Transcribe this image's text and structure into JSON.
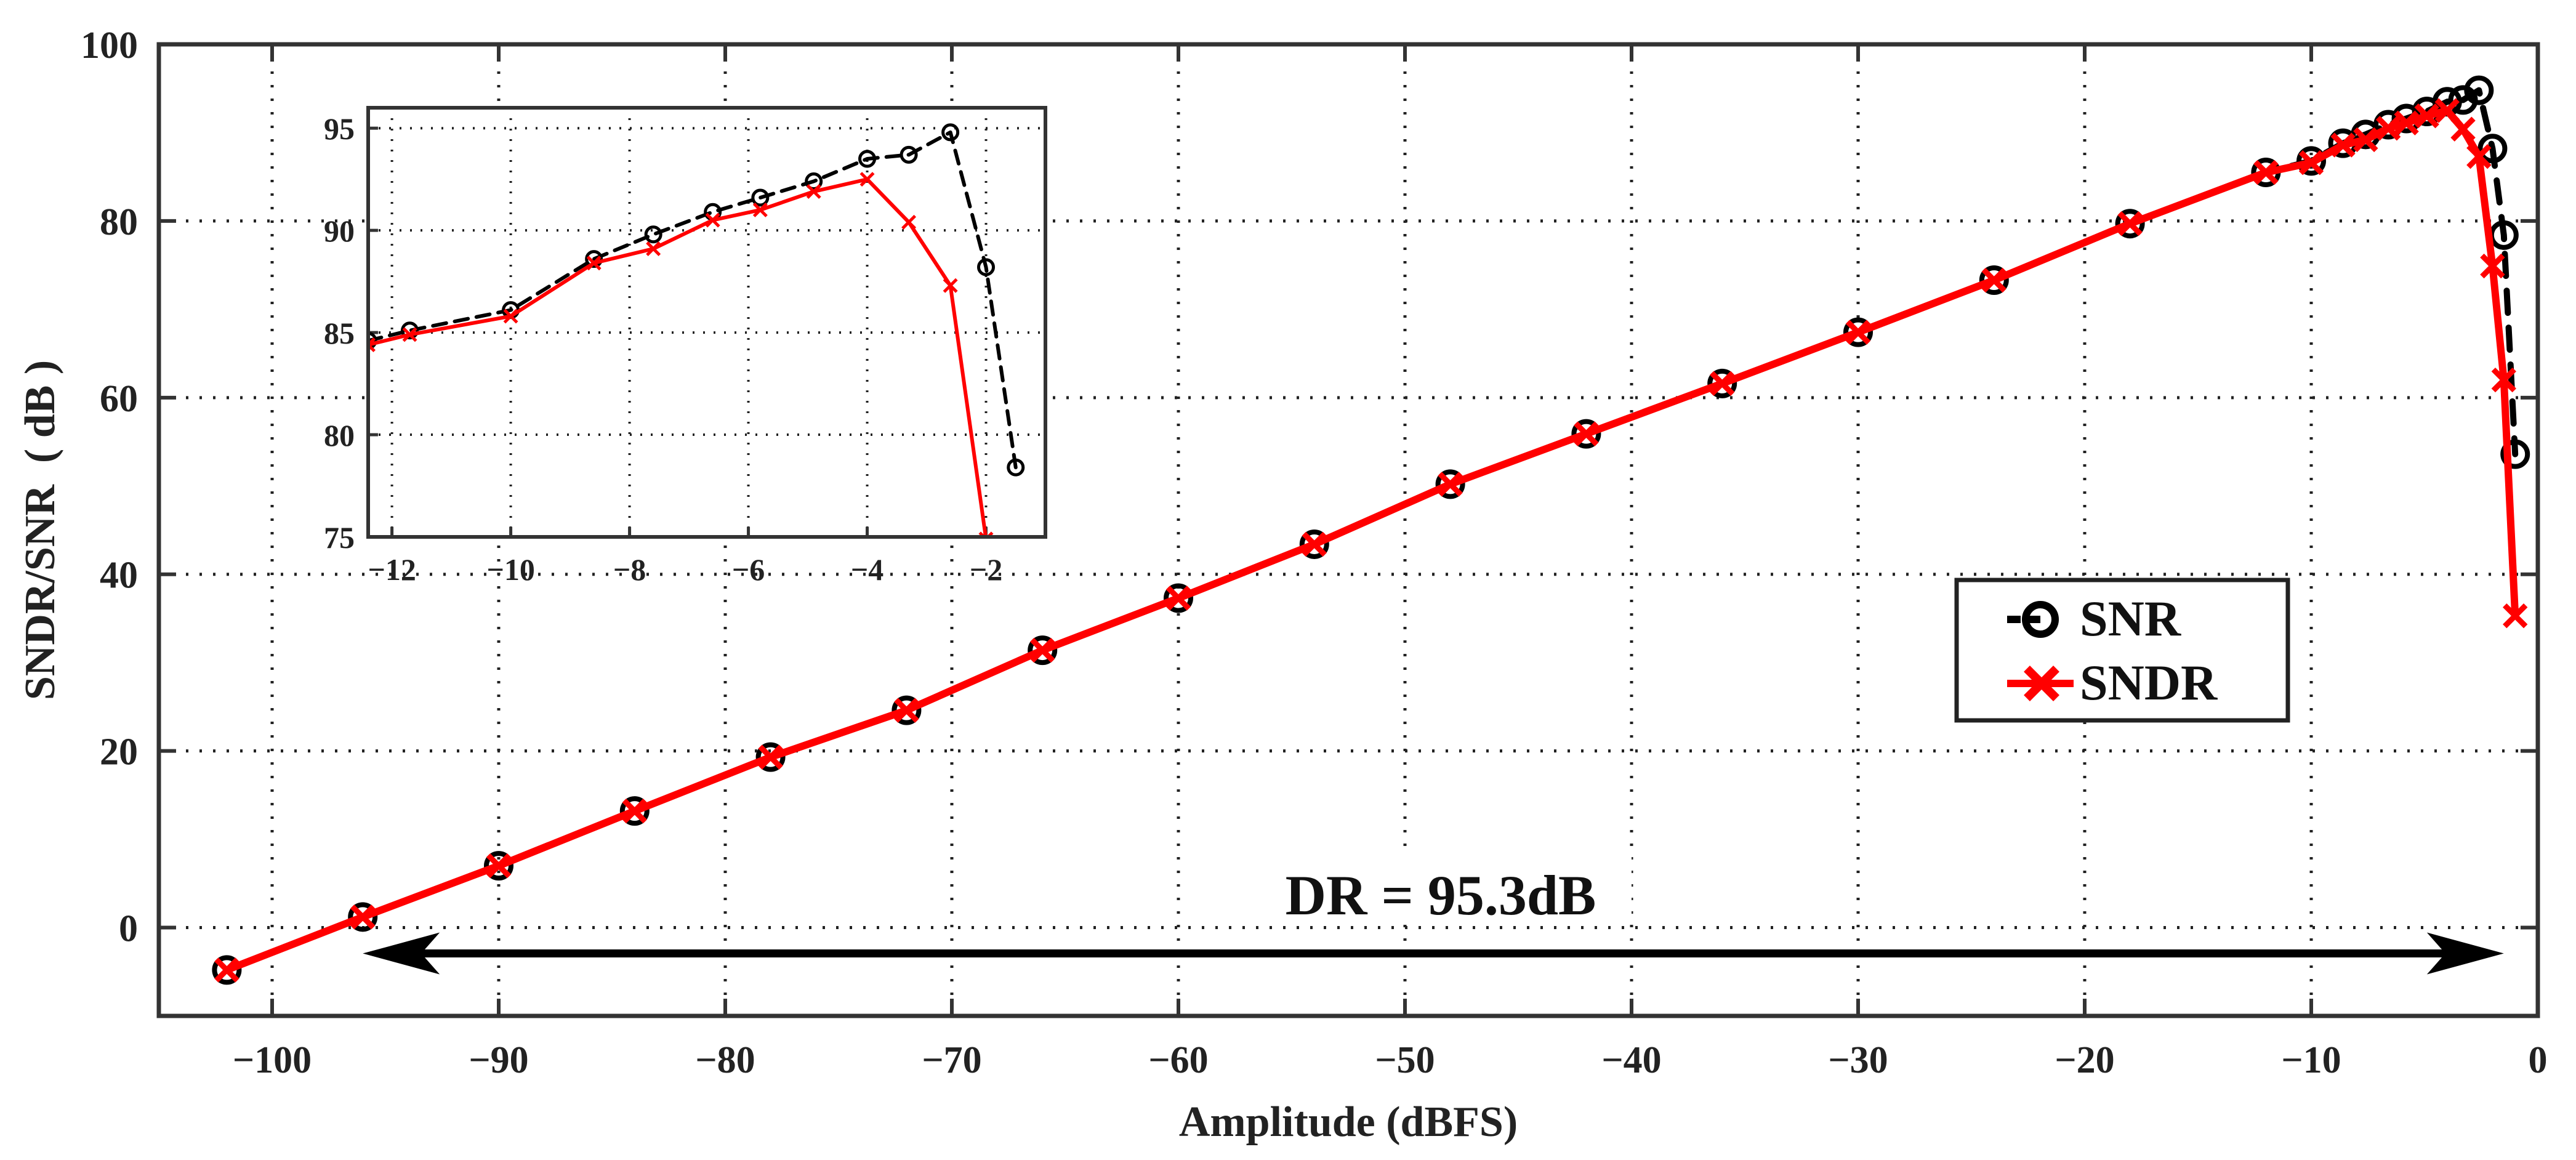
{
  "chart_data": [
    {
      "type": "line",
      "title": "",
      "xlabel": "Amplitude  (dBFS)",
      "ylabel": "SNDR/SNR  ( dB )",
      "xlim": [
        -105,
        0
      ],
      "ylim": [
        -10,
        100
      ],
      "x_ticks": [
        -100,
        -90,
        -80,
        -70,
        -60,
        -50,
        -40,
        -30,
        -20,
        -10,
        0
      ],
      "x_tick_labels": [
        "−100",
        "−90",
        "−80",
        "−70",
        "−60",
        "−50",
        "−40",
        "−30",
        "−20",
        "−10",
        "0"
      ],
      "y_ticks": [
        0,
        20,
        40,
        60,
        80,
        100
      ],
      "y_tick_labels": [
        "0",
        "20",
        "40",
        "60",
        "80",
        "100"
      ],
      "grid": true,
      "legend": {
        "position": "center-right",
        "entries": [
          {
            "name": "SNR",
            "color": "#000000",
            "marker": "circle",
            "linestyle": "dashed"
          },
          {
            "name": "SNDR",
            "color": "#ff0000",
            "marker": "x",
            "linestyle": "solid"
          }
        ]
      },
      "series": [
        {
          "name": "SNR",
          "color": "#000000",
          "x": [
            -102,
            -96,
            -90,
            -84,
            -78,
            -72,
            -66,
            -60,
            -54,
            -48,
            -42,
            -36,
            -30,
            -24,
            -18,
            -12,
            -10,
            -8.6,
            -7.6,
            -6.6,
            -5.8,
            -4.9,
            -4,
            -3.3,
            -2.6,
            -2.0,
            -1.5,
            -1.0
          ],
          "y": [
            -4.8,
            1.2,
            7.0,
            13.2,
            19.3,
            24.6,
            31.4,
            37.3,
            43.4,
            50.2,
            55.9,
            61.6,
            67.4,
            73.3,
            79.7,
            85.5,
            86.8,
            88.8,
            89.8,
            90.9,
            91.6,
            92.4,
            93.5,
            93.7,
            94.8,
            88.2,
            78.4,
            53.6
          ]
        },
        {
          "name": "SNDR",
          "color": "#ff0000",
          "x": [
            -102,
            -96,
            -90,
            -84,
            -78,
            -72,
            -66,
            -60,
            -54,
            -48,
            -42,
            -36,
            -30,
            -24,
            -18,
            -12,
            -10,
            -8.6,
            -7.6,
            -6.6,
            -5.8,
            -4.9,
            -4,
            -3.3,
            -2.6,
            -2.0,
            -1.5,
            -1.0
          ],
          "y": [
            -4.8,
            1.2,
            7.0,
            13.2,
            19.3,
            24.6,
            31.4,
            37.3,
            43.4,
            50.2,
            55.9,
            61.6,
            67.4,
            73.3,
            79.7,
            85.5,
            86.6,
            88.6,
            89.2,
            90.5,
            91.1,
            91.9,
            92.5,
            90.4,
            87.3,
            74.9,
            62.0,
            35.3
          ]
        }
      ],
      "annotations": [
        {
          "text": "DR = 95.3dB",
          "type": "double-arrow",
          "x_range": [
            -96,
            -1.5
          ],
          "y": 0
        }
      ]
    },
    {
      "type": "line",
      "title": "inset",
      "xlabel": "",
      "ylabel": "",
      "xlim": [
        -12.4,
        -1.0
      ],
      "ylim": [
        75,
        96
      ],
      "x_ticks": [
        -12,
        -10,
        -8,
        -6,
        -4,
        -2
      ],
      "x_tick_labels": [
        "−12",
        "−10",
        "−8",
        "−6",
        "−4",
        "−2"
      ],
      "y_ticks": [
        75,
        80,
        85,
        90,
        95
      ],
      "y_tick_labels": [
        "75",
        "80",
        "85",
        "90",
        "95"
      ],
      "grid": true,
      "series": [
        {
          "name": "SNR",
          "color": "#000000",
          "x": [
            -12.4,
            -11.7,
            -10,
            -8.6,
            -7.6,
            -6.6,
            -5.8,
            -4.9,
            -4.0,
            -3.3,
            -2.6,
            -2.0,
            -1.5
          ],
          "y": [
            84.6,
            85.1,
            86.1,
            88.6,
            89.8,
            90.9,
            91.6,
            92.4,
            93.5,
            93.7,
            94.8,
            88.2,
            78.4
          ]
        },
        {
          "name": "SNDR",
          "color": "#ff0000",
          "x": [
            -12.4,
            -11.7,
            -10,
            -8.6,
            -7.6,
            -6.6,
            -5.8,
            -4.9,
            -4.0,
            -3.3,
            -2.6,
            -2.0
          ],
          "y": [
            84.4,
            84.9,
            85.8,
            88.4,
            89.1,
            90.5,
            91.0,
            91.9,
            92.5,
            90.4,
            87.3,
            74.9
          ]
        }
      ]
    }
  ]
}
